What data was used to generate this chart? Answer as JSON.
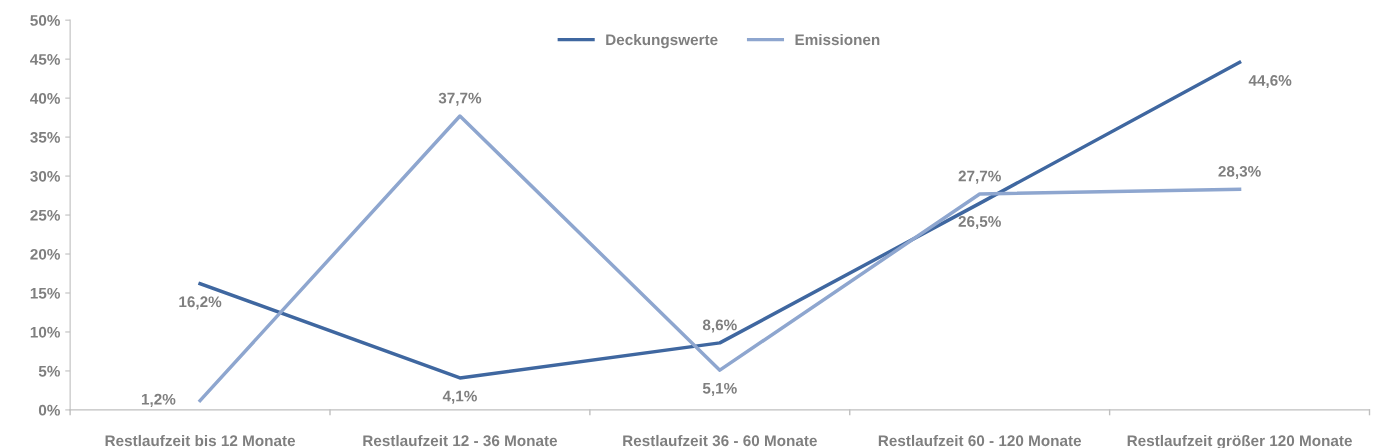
{
  "chart_data": {
    "type": "line",
    "categories": [
      "Restlaufzeit bis 12 Monate",
      "Restlaufzeit 12 - 36 Monate",
      "Restlaufzeit 36 - 60 Monate",
      "Restlaufzeit 60 - 120 Monate",
      "Restlaufzeit größer 120 Monate"
    ],
    "series": [
      {
        "name": "Deckungswerte",
        "color": "#3f67a0",
        "values": [
          16.2,
          4.1,
          8.6,
          26.5,
          44.6
        ],
        "value_labels": [
          "16,2%",
          "4,1%",
          "8,6%",
          "26,5%",
          "44,6%"
        ]
      },
      {
        "name": "Emissionen",
        "color": "#8ea6cf",
        "values": [
          1.2,
          37.7,
          5.1,
          27.7,
          28.3
        ],
        "value_labels": [
          "1,2%",
          "37,7%",
          "5,1%",
          "27,7%",
          "28,3%"
        ]
      }
    ],
    "ylim": [
      0,
      50
    ],
    "yticks": [
      {
        "value": 0,
        "label": "0%"
      },
      {
        "value": 5,
        "label": "5%"
      },
      {
        "value": 10,
        "label": "10%"
      },
      {
        "value": 15,
        "label": "15%"
      },
      {
        "value": 20,
        "label": "20%"
      },
      {
        "value": 25,
        "label": "25%"
      },
      {
        "value": 30,
        "label": "30%"
      },
      {
        "value": 35,
        "label": "35%"
      },
      {
        "value": 40,
        "label": "40%"
      },
      {
        "value": 45,
        "label": "45%"
      },
      {
        "value": 50,
        "label": "50%"
      }
    ],
    "legend": "top",
    "grid": false,
    "marker": "none",
    "line_style": "solid"
  }
}
